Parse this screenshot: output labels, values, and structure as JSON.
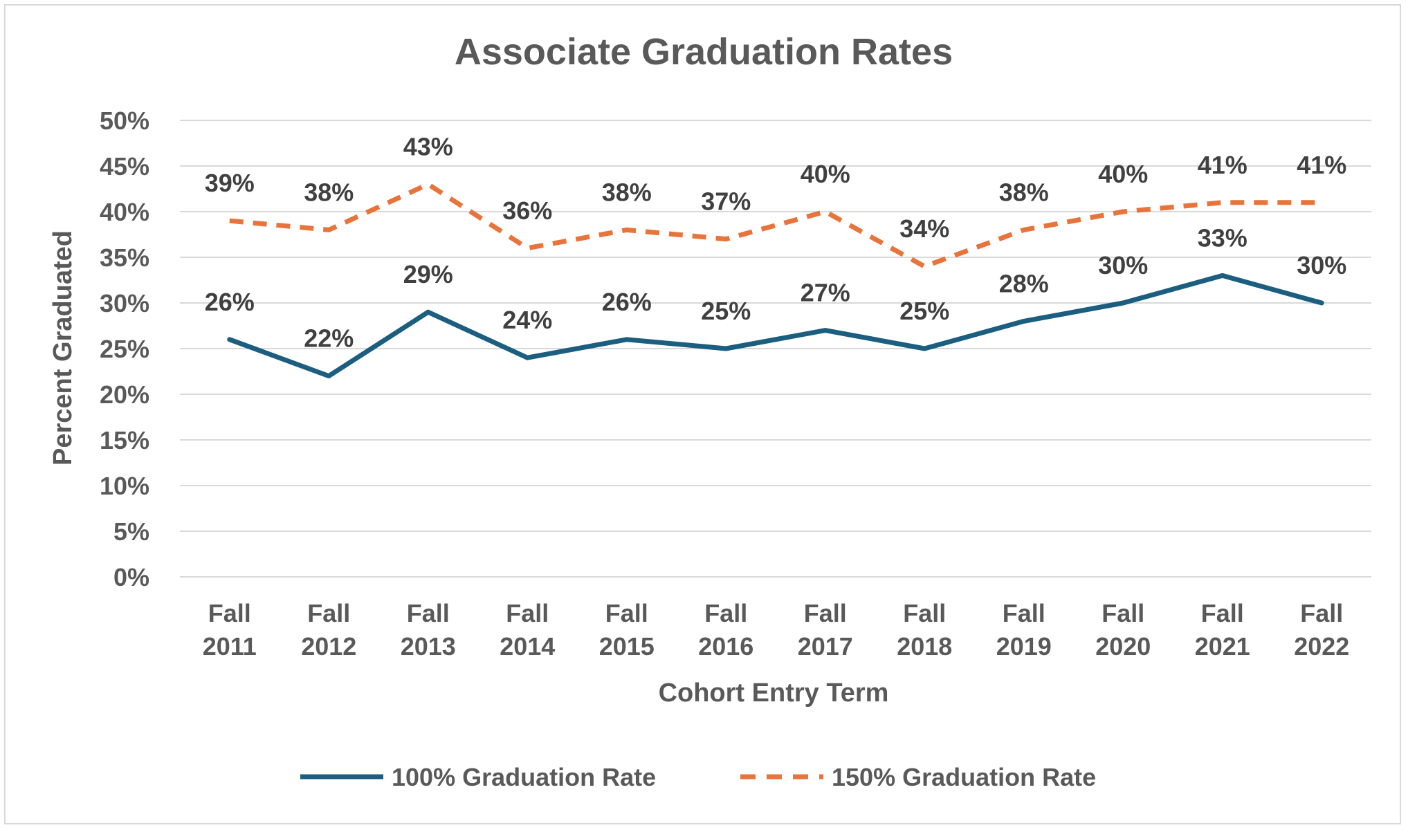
{
  "chart_data": {
    "type": "line",
    "title": "Associate Graduation Rates",
    "xlabel": "Cohort Entry Term",
    "ylabel": "Percent Graduated",
    "categories": [
      [
        "Fall",
        "2011"
      ],
      [
        "Fall",
        "2012"
      ],
      [
        "Fall",
        "2013"
      ],
      [
        "Fall",
        "2014"
      ],
      [
        "Fall",
        "2015"
      ],
      [
        "Fall",
        "2016"
      ],
      [
        "Fall",
        "2017"
      ],
      [
        "Fall",
        "2018"
      ],
      [
        "Fall",
        "2019"
      ],
      [
        "Fall",
        "2020"
      ],
      [
        "Fall",
        "2021"
      ],
      [
        "Fall",
        "2022"
      ]
    ],
    "ylim": [
      0,
      50
    ],
    "yticks": [
      0,
      5,
      10,
      15,
      20,
      25,
      30,
      35,
      40,
      45,
      50
    ],
    "ytick_labels": [
      "0%",
      "5%",
      "10%",
      "15%",
      "20%",
      "25%",
      "30%",
      "35%",
      "40%",
      "45%",
      "50%"
    ],
    "grid": true,
    "legend_position": "bottom",
    "series": [
      {
        "name": "100% Graduation Rate",
        "values": [
          26,
          22,
          29,
          24,
          26,
          25,
          27,
          25,
          28,
          30,
          33,
          30
        ],
        "labels": [
          "26%",
          "22%",
          "29%",
          "24%",
          "26%",
          "25%",
          "27%",
          "25%",
          "28%",
          "30%",
          "33%",
          "30%"
        ],
        "color": "#1b5e80",
        "style": "solid"
      },
      {
        "name": "150% Graduation Rate",
        "values": [
          39,
          38,
          43,
          36,
          38,
          37,
          40,
          34,
          38,
          40,
          41,
          41
        ],
        "labels": [
          "39%",
          "38%",
          "43%",
          "36%",
          "38%",
          "37%",
          "40%",
          "34%",
          "38%",
          "40%",
          "41%",
          "41%"
        ],
        "color": "#e8743b",
        "style": "dashed"
      }
    ]
  }
}
